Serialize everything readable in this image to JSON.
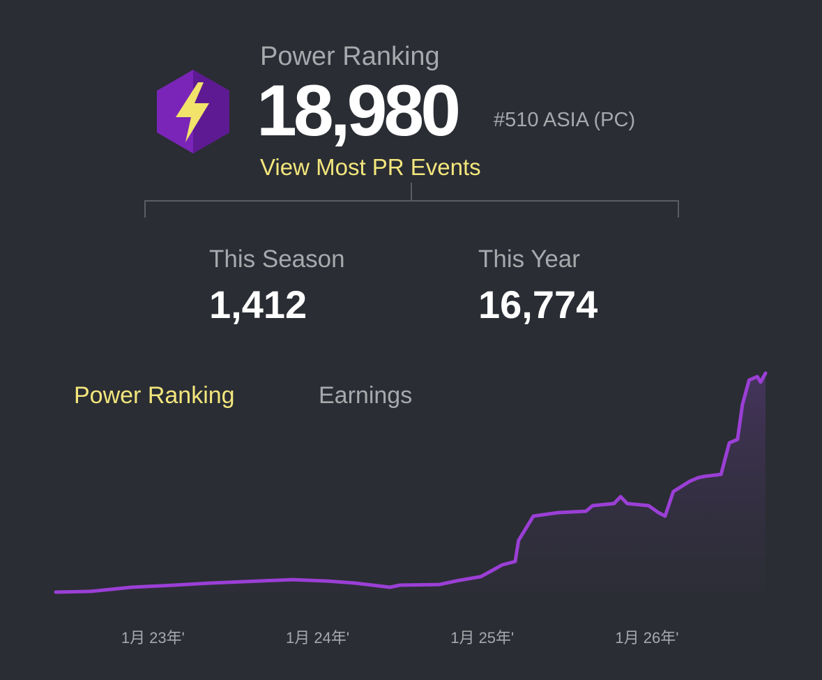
{
  "header": {
    "label": "Power Ranking",
    "score": "18,980",
    "rank": "#510 ASIA (PC)",
    "link": "View Most PR Events"
  },
  "stats": [
    {
      "label": "This Season",
      "value": "1,412"
    },
    {
      "label": "This Year",
      "value": "16,774"
    }
  ],
  "tabs": [
    "Power Ranking",
    "Earnings"
  ],
  "active_tab": 0,
  "chart_data": {
    "type": "line",
    "x": [
      2022.41,
      2022.62,
      2022.87,
      2023.13,
      2023.34,
      2023.64,
      2023.85,
      2024.06,
      2024.23,
      2024.44,
      2024.5,
      2024.74,
      2024.86,
      2024.99,
      2025.06,
      2025.12,
      2025.2,
      2025.22,
      2025.31,
      2025.46,
      2025.63,
      2025.67,
      2025.8,
      2025.84,
      2025.88,
      2026.01,
      2026.07,
      2026.11,
      2026.16,
      2026.26,
      2026.31,
      2026.35,
      2026.45,
      2026.5,
      2026.55,
      2026.58,
      2026.62,
      2026.67,
      2026.69,
      2026.72
    ],
    "series": [
      {
        "color": "#9b3fd6",
        "values": [
          60,
          120,
          480,
          660,
          840,
          1020,
          1140,
          1020,
          840,
          480,
          660,
          720,
          1080,
          1390,
          1930,
          2410,
          2710,
          4520,
          6630,
          6930,
          7050,
          7530,
          7710,
          8310,
          7710,
          7530,
          6930,
          6630,
          8740,
          9640,
          9940,
          10060,
          10240,
          12950,
          13250,
          16270,
          18380,
          18680,
          18200,
          18980
        ]
      }
    ],
    "xlim": [
      2022.41,
      2026.72
    ],
    "xticks": [
      {
        "value": 2023,
        "label": "1月 23年'"
      },
      {
        "value": 2024,
        "label": "1月 24年'"
      },
      {
        "value": 2025,
        "label": "1月 25年'"
      },
      {
        "value": 2026,
        "label": "1月 26年'"
      }
    ]
  }
}
